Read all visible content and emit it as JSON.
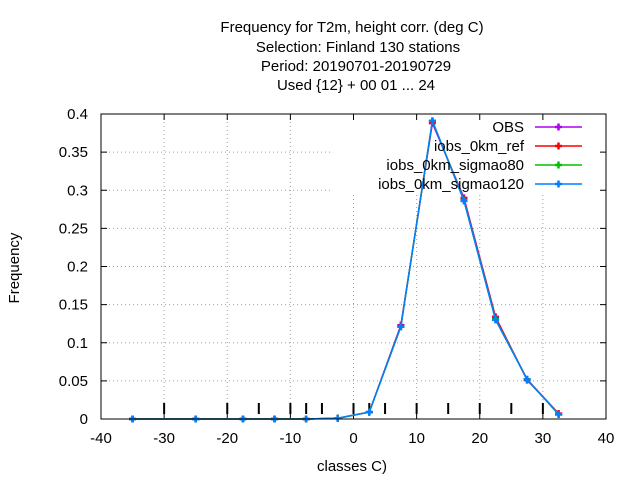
{
  "chart_data": {
    "type": "line",
    "title_lines": [
      "Frequency  for T2m, height corr. (deg C)",
      "Selection: Finland     130 stations",
      "Period: 20190701-20190729",
      "Used {12} + 00 01 ... 24"
    ],
    "xlabel": "classes C)",
    "ylabel": "Frequency",
    "xlim": [
      -40,
      40
    ],
    "ylim": [
      0,
      0.4
    ],
    "xticks": [
      -40,
      -30,
      -20,
      -10,
      0,
      10,
      20,
      30,
      40
    ],
    "xtick_labels": [
      "-40",
      "-30",
      "-20",
      "-10",
      "0",
      "10",
      "20",
      "30",
      "40"
    ],
    "yticks": [
      0,
      0.05,
      0.1,
      0.15,
      0.2,
      0.25,
      0.3,
      0.35,
      0.4
    ],
    "ytick_labels": [
      "0",
      "0.05",
      "0.1",
      "0.15",
      "0.2",
      "0.25",
      "0.3",
      "0.35",
      "0.4"
    ],
    "class_boundaries": [
      -30,
      -20,
      -15,
      -10,
      -7.5,
      -5,
      0,
      2.5,
      5,
      10,
      15,
      20,
      25,
      30
    ],
    "grid": true,
    "legend_position": "top-right",
    "series": [
      {
        "name": "OBS",
        "color": "#b000f0",
        "x": [
          -35,
          -25,
          -17.5,
          -12.5,
          -7.5,
          -2.5,
          2.5,
          7.5,
          12.5,
          17.5,
          22.5,
          27.5,
          32.5
        ],
        "y": [
          0,
          0,
          0,
          0,
          0,
          0.001,
          0.009,
          0.123,
          0.388,
          0.29,
          0.134,
          0.051,
          0.007
        ]
      },
      {
        "name": "iobs_0km_ref",
        "color": "#ff0000",
        "x": [
          -35,
          -25,
          -17.5,
          -12.5,
          -7.5,
          -2.5,
          2.5,
          7.5,
          12.5,
          17.5,
          22.5,
          27.5,
          32.5
        ],
        "y": [
          0,
          0,
          0,
          0,
          0,
          0.001,
          0.009,
          0.122,
          0.39,
          0.288,
          0.133,
          0.052,
          0.007
        ]
      },
      {
        "name": "iobs_0km_sigmao80",
        "color": "#00c000",
        "x": [
          -35,
          -25,
          -17.5,
          -12.5,
          -7.5,
          -2.5,
          2.5,
          7.5,
          12.5,
          17.5,
          22.5,
          27.5,
          32.5
        ],
        "y": [
          0,
          0,
          0,
          0,
          0,
          0.001,
          0.009,
          0.121,
          0.391,
          0.287,
          0.131,
          0.052,
          0.006
        ]
      },
      {
        "name": "iobs_0km_sigmao120",
        "color": "#0080ff",
        "x": [
          -35,
          -25,
          -17.5,
          -12.5,
          -7.5,
          -2.5,
          2.5,
          7.5,
          12.5,
          17.5,
          22.5,
          27.5,
          32.5
        ],
        "y": [
          0,
          0,
          0,
          0,
          0,
          0.001,
          0.009,
          0.121,
          0.391,
          0.286,
          0.13,
          0.052,
          0.006
        ]
      }
    ]
  }
}
